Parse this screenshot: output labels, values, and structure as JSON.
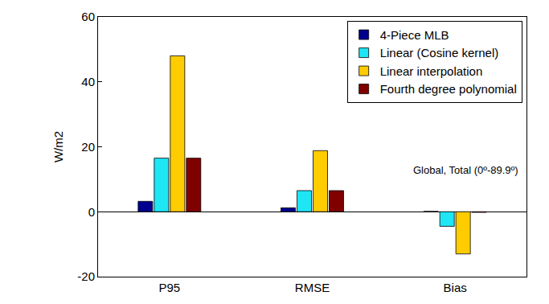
{
  "chart_data": {
    "type": "bar",
    "categories": [
      "P95",
      "RMSE",
      "Bias"
    ],
    "series": [
      {
        "name": "4-Piece MLB",
        "color": "#00008f",
        "values": [
          3.2,
          1.2,
          0.1
        ]
      },
      {
        "name": "Linear (Cosine kernel)",
        "color": "#1ee6f5",
        "values": [
          16.5,
          6.5,
          -4.5
        ]
      },
      {
        "name": "Linear interpolation",
        "color": "#ffcc00",
        "values": [
          48,
          18.8,
          -13
        ]
      },
      {
        "name": "Fourth degree polynomial",
        "color": "#800000",
        "values": [
          16.5,
          6.5,
          -0.2
        ]
      }
    ],
    "y_label": "W/m2",
    "annotations": [
      "Global, Total (0º-89.9º)"
    ],
    "ylim": [
      -20,
      60
    ],
    "yticks": [
      -20,
      0,
      20,
      40,
      60
    ],
    "grid": false,
    "legend": "top-right"
  }
}
